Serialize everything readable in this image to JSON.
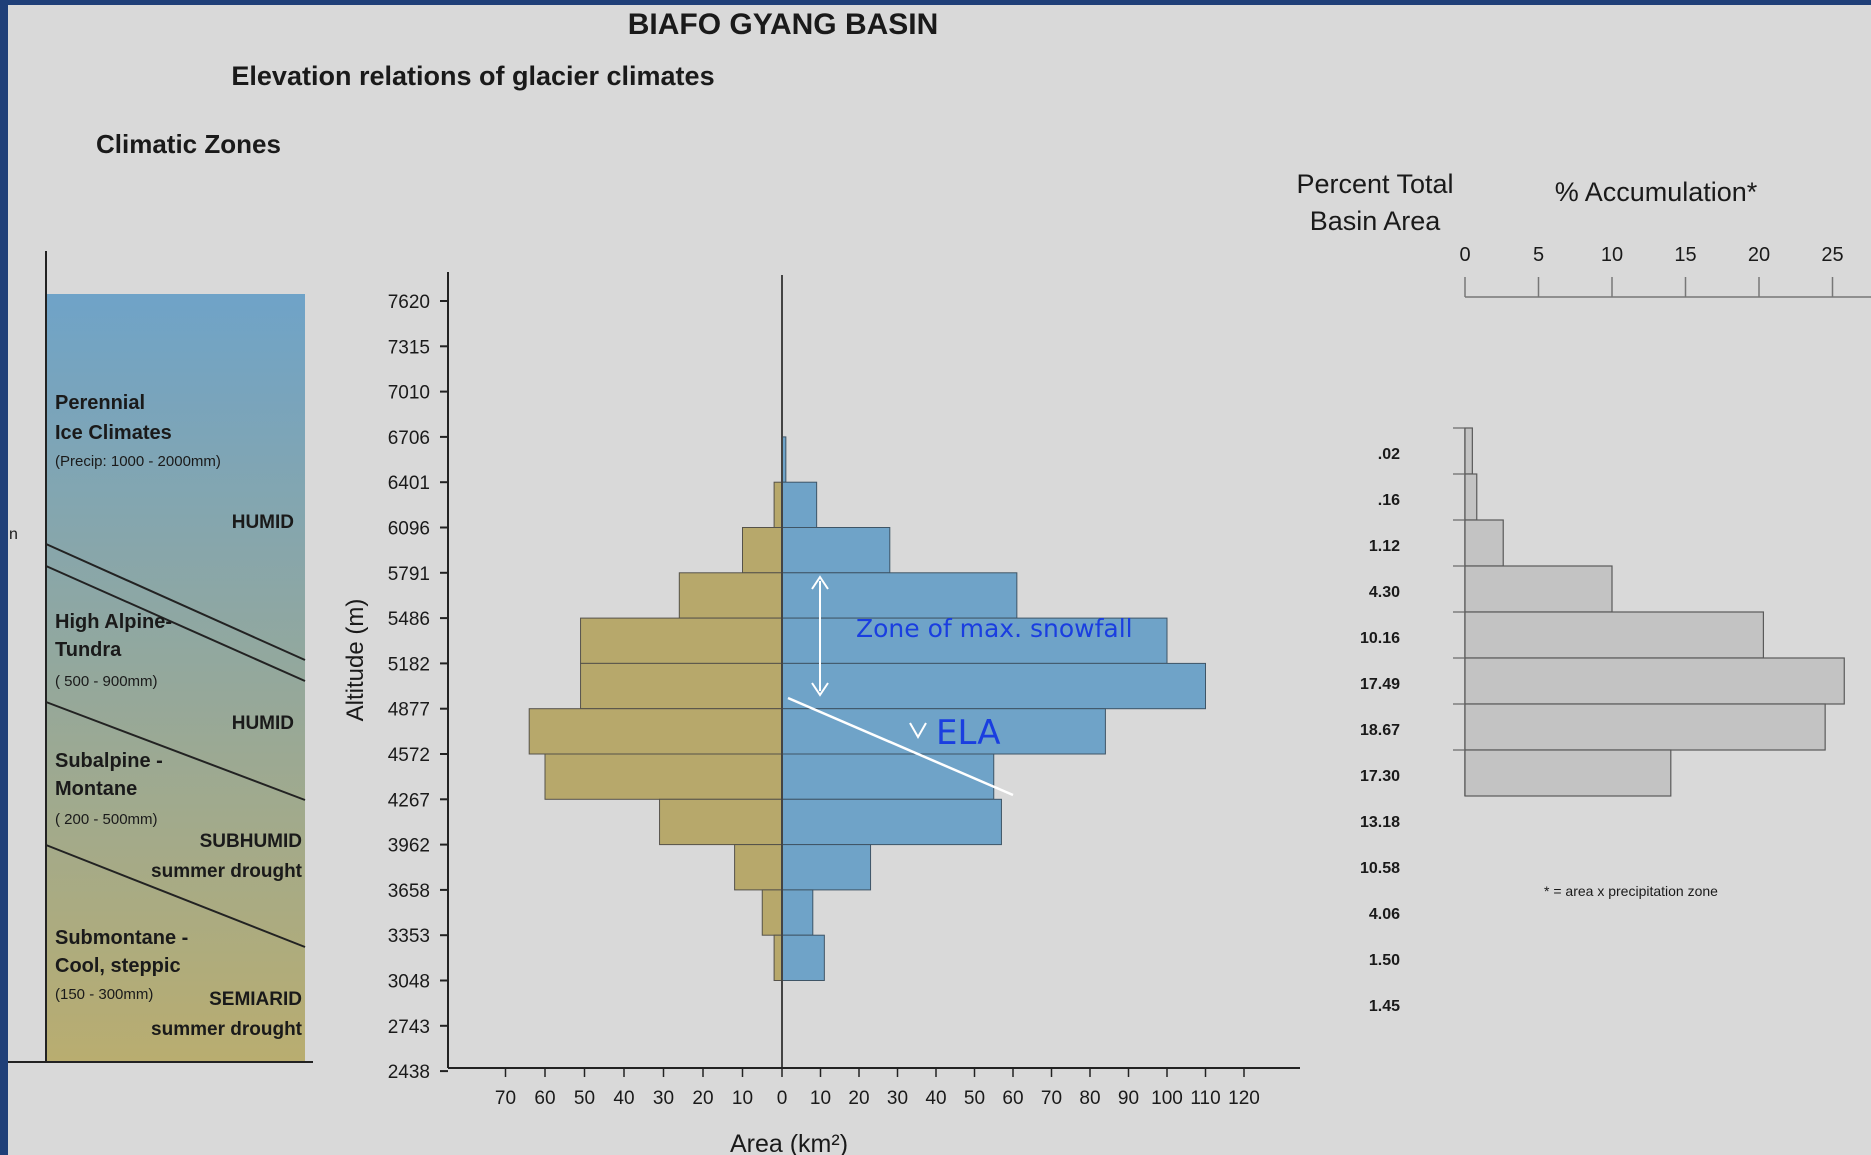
{
  "title": "BIAFO GYANG  BASIN",
  "subtitle": "Elevation relations of glacier climates",
  "zones_heading": "Climatic Zones",
  "side_fragment": "n",
  "zones": [
    {
      "name_line1": "Perennial",
      "name_line2": "Ice Climates",
      "precip": "(Precip: 1000 - 2000mm)",
      "moisture": "HUMID",
      "moisture_note": ""
    },
    {
      "name_line1": "High Alpine-",
      "name_line2": "Tundra",
      "precip": "( 500 - 900mm)",
      "moisture": "HUMID",
      "moisture_note": ""
    },
    {
      "name_line1": "Subalpine -",
      "name_line2": "Montane",
      "precip": "( 200 - 500mm)",
      "moisture": "SUBHUMID",
      "moisture_note": "summer drought"
    },
    {
      "name_line1": "Submontane -",
      "name_line2": "Cool, steppic",
      "precip": "(150 - 300mm)",
      "moisture": "SEMIARID",
      "moisture_note": "summer drought"
    }
  ],
  "colors": {
    "background": "#d9d9d9",
    "frame": "#1f3f78",
    "zone_top": "#6fa3c8",
    "zone_bottom": "#b9ad70",
    "left_bars": "#b7a86b",
    "right_bars": "#6fa3c8",
    "accum_bars": "#c3c3c3",
    "annotation": "#1a3ee0"
  },
  "chart_data": [
    {
      "type": "bar",
      "orientation": "horizontal",
      "ylabel": "Altitude (m)",
      "xlabel": "Area (km²)",
      "y_ticks": [
        "7620",
        "7315",
        "7010",
        "6706",
        "6401",
        "6096",
        "5791",
        "5486",
        "5182",
        "4877",
        "4572",
        "4267",
        "3962",
        "3658",
        "3353",
        "3048",
        "2743",
        "2438"
      ],
      "x_ticks_left": [
        "70",
        "60",
        "50",
        "40",
        "30",
        "20",
        "10"
      ],
      "x_ticks_right": [
        "0",
        "10",
        "20",
        "30",
        "40",
        "50",
        "60",
        "70",
        "80",
        "90",
        "100",
        "110",
        "120"
      ],
      "bands": [
        {
          "from": "6706",
          "to": "6401",
          "left": 0,
          "right": 1
        },
        {
          "from": "6401",
          "to": "6096",
          "left": 2,
          "right": 9
        },
        {
          "from": "6096",
          "to": "5791",
          "left": 10,
          "right": 28
        },
        {
          "from": "5791",
          "to": "5486",
          "left": 26,
          "right": 61
        },
        {
          "from": "5486",
          "to": "5182",
          "left": 51,
          "right": 100
        },
        {
          "from": "5182",
          "to": "4877",
          "left": 51,
          "right": 110
        },
        {
          "from": "4877",
          "to": "4572",
          "left": 64,
          "right": 84
        },
        {
          "from": "4572",
          "to": "4267",
          "left": 60,
          "right": 55
        },
        {
          "from": "4267",
          "to": "3962",
          "left": 31,
          "right": 57
        },
        {
          "from": "3962",
          "to": "3658",
          "left": 12,
          "right": 23
        },
        {
          "from": "3658",
          "to": "3353",
          "left": 5,
          "right": 8
        },
        {
          "from": "3353",
          "to": "3048",
          "left": 2,
          "right": 11
        }
      ],
      "annotations": {
        "zone_label": "Zone of max. snowfall",
        "ela_label": "ELA"
      }
    },
    {
      "type": "bar",
      "orientation": "horizontal",
      "title": "% Accumulation*",
      "column_heading_line1": "Percent Total",
      "column_heading_line2": "Basin Area",
      "x_ticks": [
        "0",
        "5",
        "10",
        "15",
        "20",
        "25"
      ],
      "xlim": [
        0,
        25
      ],
      "percent_area_labels": [
        ".02",
        ".16",
        "1.12",
        "4.30",
        "10.16",
        "17.49",
        "18.67",
        "17.30",
        "13.18",
        "10.58",
        "4.06",
        "1.50",
        "1.45"
      ],
      "accumulation_values": [
        0.5,
        0.8,
        2.6,
        10,
        20.3,
        25.8,
        24.5,
        14
      ],
      "footnote": "* = area x precipitation zone"
    }
  ]
}
